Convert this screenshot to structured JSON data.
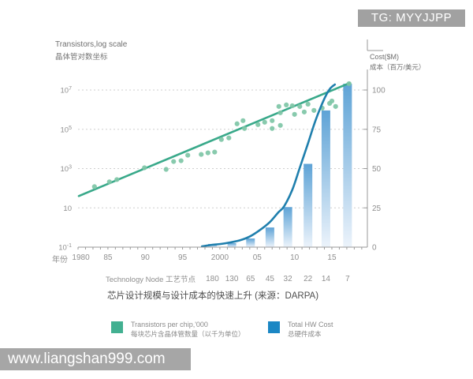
{
  "watermarks": {
    "top_right": "TG: MYYJJPP",
    "bottom_left": "www.liangshan999.com"
  },
  "header": {
    "left_title_en": "Transistors,log scale",
    "left_title_zh": "晶体管对数坐标",
    "right_title_en": "Cost($M)",
    "right_title_zh": "成本（百万/美元）"
  },
  "axes": {
    "x_axis_title": "年份",
    "x_ticks": [
      {
        "label": "1980",
        "year": 1980
      },
      {
        "label": "85",
        "year": 1985
      },
      {
        "label": "90",
        "year": 1990
      },
      {
        "label": "95",
        "year": 1995
      },
      {
        "label": "2000",
        "year": 2000
      },
      {
        "label": "05",
        "year": 2005
      },
      {
        "label": "10",
        "year": 2010
      },
      {
        "label": "15",
        "year": 2015
      }
    ],
    "y_left_ticks": [
      {
        "base": "10",
        "exp": "7",
        "log": 7
      },
      {
        "base": "10",
        "exp": "5",
        "log": 5
      },
      {
        "base": "10",
        "exp": "3",
        "log": 3
      },
      {
        "base": "10",
        "exp": "",
        "log": 1
      },
      {
        "base": "10",
        "exp": "-1",
        "log": -1
      }
    ],
    "y_right_ticks": [
      100,
      75,
      50,
      25,
      0
    ],
    "tech_node_label": "Technology Node 工艺节点"
  },
  "caption": {
    "text": "芯片设计规模与设计成本的快速上升 (来源：DARPA)"
  },
  "legend": {
    "items": [
      {
        "color": "#42b091",
        "label_en": "Transistors per chip,'000",
        "label_zh": "每块芯片含晶体管数量（以千为单位）"
      },
      {
        "color": "#1b87c4",
        "label_en": "Total HW Cost",
        "label_zh": "总硬件成本"
      }
    ]
  },
  "colors": {
    "scatter_dot": "#7ec6a6",
    "trend_line": "#39a98a",
    "cost_curve": "#1f7fad",
    "bar_top": "#5ea3d6",
    "bar_bottom": "#ecf3fb",
    "grid": "#cfcfcf",
    "axis": "#9a9a9a",
    "tick_text": "#8f8f8f"
  },
  "chart_data": {
    "type": "combo: scatter + trend line (log axis) + bar + line (cost axis)",
    "title": "芯片设计规模与设计成本的快速上升 (来源：DARPA)",
    "x_axis": {
      "label": "年份",
      "range_years": [
        1981,
        2019
      ],
      "ticks": [
        1980,
        1985,
        1990,
        1995,
        2000,
        2005,
        2010,
        2015
      ]
    },
    "y_left_axis": {
      "label": "Transistors,log scale 晶体管对数坐标",
      "scale": "log10",
      "range_log10": [
        -1,
        7
      ],
      "grid": "dashed"
    },
    "y_right_axis": {
      "label": "Cost($M) 成本（百万/美元）",
      "range": [
        0,
        100
      ],
      "ticks": [
        0,
        25,
        50,
        75,
        100
      ]
    },
    "transistors_scatter_year_thousands": [
      [
        1983.2,
        120
      ],
      [
        1985.2,
        210
      ],
      [
        1986.2,
        275
      ],
      [
        1989.9,
        1100
      ],
      [
        1992.8,
        910
      ],
      [
        1993.8,
        2290
      ],
      [
        1994.8,
        2510
      ],
      [
        1995.7,
        4790
      ],
      [
        1997.5,
        5250
      ],
      [
        1998.4,
        6310
      ],
      [
        1999.3,
        6920
      ],
      [
        2000.2,
        30200
      ],
      [
        2001.2,
        36300
      ],
      [
        2002.3,
        191000
      ],
      [
        2003.1,
        275000
      ],
      [
        2003.3,
        110000
      ],
      [
        2005.1,
        174000
      ],
      [
        2006.0,
        229000
      ],
      [
        2007.0,
        275000
      ],
      [
        2007.0,
        110000
      ],
      [
        2007.9,
        1450000
      ],
      [
        2008.1,
        692000
      ],
      [
        2008.1,
        158000
      ],
      [
        2008.9,
        1740000
      ],
      [
        2009.7,
        1580000
      ],
      [
        2010.0,
        575000
      ],
      [
        2010.7,
        1450000
      ],
      [
        2011.3,
        759000
      ],
      [
        2011.8,
        1910000
      ],
      [
        2012.6,
        912000
      ],
      [
        2013.7,
        1200000
      ],
      [
        2014.7,
        2090000
      ],
      [
        2015.0,
        2750000
      ],
      [
        2015.5,
        1450000
      ],
      [
        2017.3,
        21000000
      ]
    ],
    "trend_line_year_thousands": [
      [
        1981.1,
        40
      ],
      [
        2017.4,
        22900000
      ]
    ],
    "cost_curve_year_costM": [
      [
        1997.6,
        0.5
      ],
      [
        1999.0,
        1.5
      ],
      [
        2000.1,
        2
      ],
      [
        2001.4,
        3
      ],
      [
        2002.8,
        4.5
      ],
      [
        2004.1,
        7
      ],
      [
        2005.4,
        11
      ],
      [
        2006.7,
        16
      ],
      [
        2007.8,
        22
      ],
      [
        2008.6,
        26
      ],
      [
        2009.7,
        36.5
      ],
      [
        2010.7,
        50.5
      ],
      [
        2011.8,
        66
      ],
      [
        2012.8,
        80.5
      ],
      [
        2013.9,
        93.5
      ],
      [
        2014.7,
        100.5
      ],
      [
        2015.4,
        103.5
      ]
    ],
    "cost_bars": [
      {
        "node": "180",
        "year": 1999.0,
        "cost": 2
      },
      {
        "node": "130",
        "year": 2001.6,
        "cost": 2.5
      },
      {
        "node": "65",
        "year": 2004.1,
        "cost": 5.5
      },
      {
        "node": "45",
        "year": 2006.7,
        "cost": 12.5
      },
      {
        "node": "32",
        "year": 2009.1,
        "cost": 25.5
      },
      {
        "node": "22",
        "year": 2011.8,
        "cost": 53
      },
      {
        "node": "14",
        "year": 2014.2,
        "cost": 87
      },
      {
        "node": "7",
        "year": 2017.1,
        "cost": 104
      }
    ],
    "legend": [
      "Transistors per chip,'000 每块芯片含晶体管数量（以千为单位）",
      "Total HW Cost 总硬件成本"
    ],
    "legend_position": "bottom"
  }
}
